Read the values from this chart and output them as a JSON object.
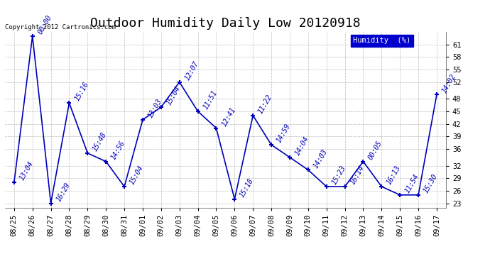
{
  "title": "Outdoor Humidity Daily Low 20120918",
  "copyright_text": "Copyright 2012 Cartronics.com",
  "legend_label": "Humidity  (%)",
  "x_labels": [
    "08/25",
    "08/26",
    "08/27",
    "08/28",
    "08/29",
    "08/30",
    "08/31",
    "09/01",
    "09/02",
    "09/03",
    "09/04",
    "09/05",
    "09/06",
    "09/07",
    "09/08",
    "09/09",
    "09/10",
    "09/11",
    "09/12",
    "09/13",
    "09/14",
    "09/15",
    "09/16",
    "09/17"
  ],
  "x_indices": [
    0,
    1,
    2,
    3,
    4,
    5,
    6,
    7,
    8,
    9,
    10,
    11,
    12,
    13,
    14,
    15,
    16,
    17,
    18,
    19,
    20,
    21,
    22,
    23
  ],
  "y_values": [
    28,
    63,
    23,
    47,
    35,
    33,
    27,
    43,
    46,
    52,
    45,
    41,
    24,
    44,
    37,
    34,
    31,
    27,
    27,
    33,
    27,
    25,
    25,
    49
  ],
  "point_labels": [
    "13:04",
    "00:00",
    "16:29",
    "15:16",
    "15:48",
    "14:56",
    "15:04",
    "13:03",
    "15:04",
    "12:07",
    "11:51",
    "12:41",
    "15:18",
    "11:22",
    "14:59",
    "14:04",
    "14:03",
    "15:23",
    "16:14",
    "00:05",
    "16:13",
    "11:54",
    "15:30",
    "14:02"
  ],
  "ylim_min": 22,
  "ylim_max": 64,
  "yticks": [
    23,
    26,
    29,
    32,
    36,
    39,
    42,
    45,
    48,
    52,
    55,
    58,
    61
  ],
  "line_color": "#0000bb",
  "marker_color": "#0000bb",
  "grid_color": "#bbbbbb",
  "bg_color": "#ffffff",
  "title_fontsize": 13,
  "tick_fontsize": 7.5,
  "annotation_fontsize": 7,
  "legend_bg": "#0000cc",
  "legend_fg": "#ffffff"
}
